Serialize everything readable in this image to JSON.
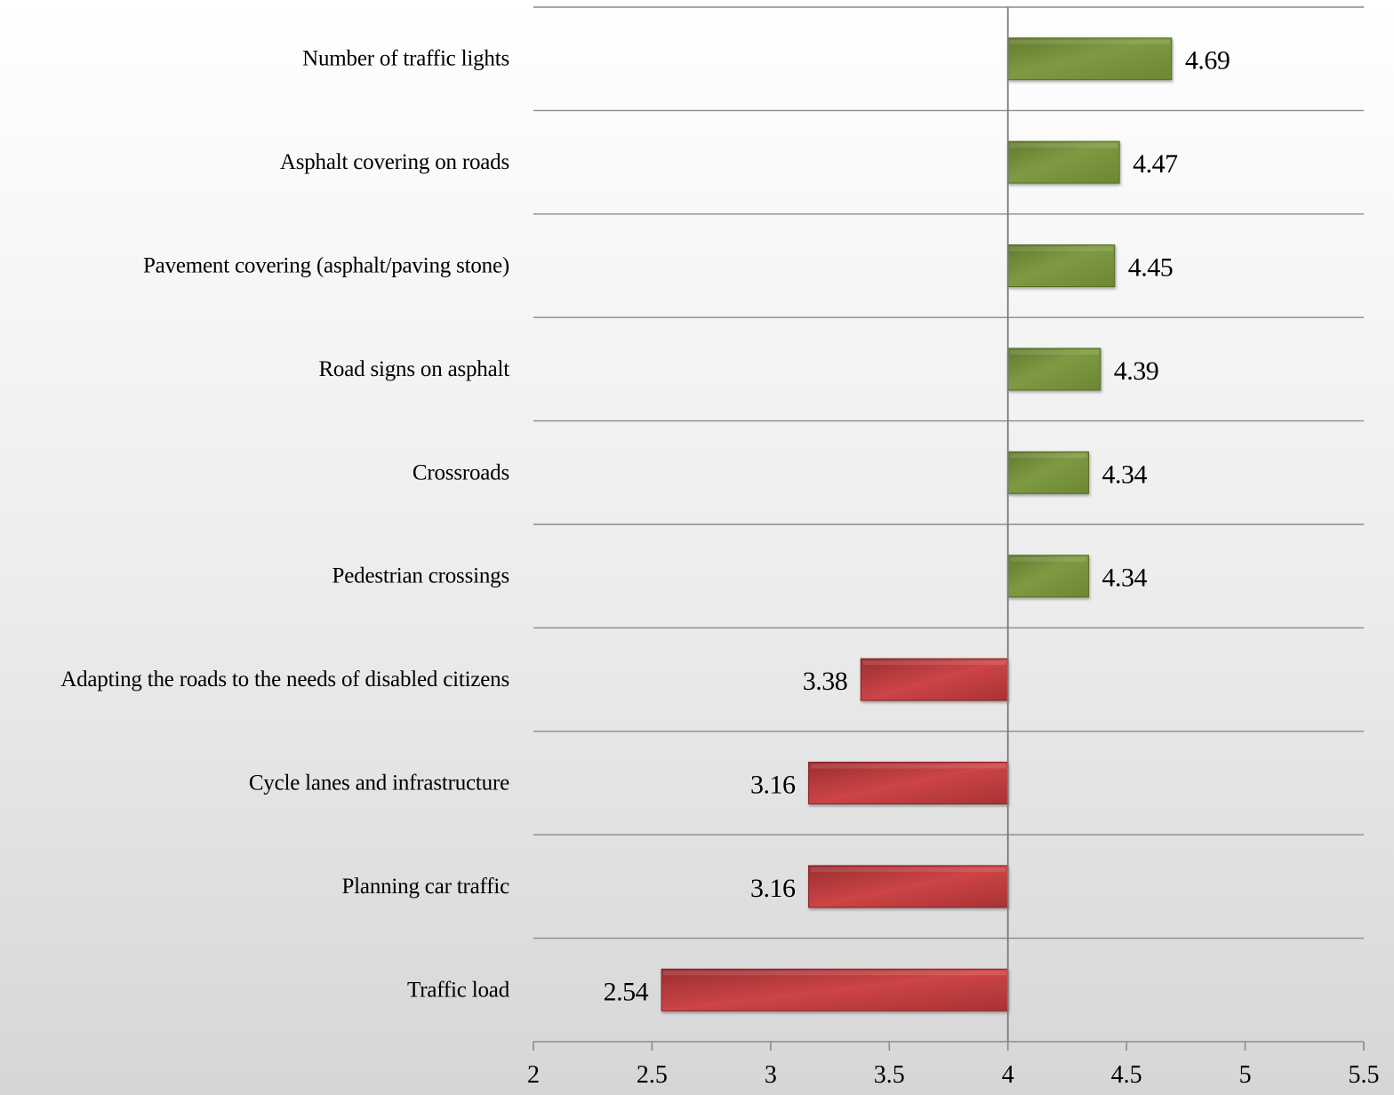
{
  "chart_data": {
    "type": "bar",
    "orientation": "horizontal",
    "title": "",
    "xlabel": "",
    "ylabel": "",
    "baseline": 4,
    "xlim": [
      2,
      5.5
    ],
    "ticks": [
      "2",
      "2.5",
      "3",
      "3.5",
      "4",
      "4.5",
      "5",
      "5.5"
    ],
    "tick_values": [
      2,
      2.5,
      3,
      3.5,
      4,
      4.5,
      5,
      5.5
    ],
    "grid": "horizontal separators between categories",
    "legend": "none",
    "colors": {
      "above": "#77933c",
      "below": "#c0393b"
    },
    "categories": [
      "Number of traffic lights",
      "Asphalt covering on roads",
      "Pavement covering (asphalt/paving stone)",
      "Road signs on asphalt",
      "Crossroads",
      "Pedestrian crossings",
      "Adapting the roads to the needs of disabled citizens",
      "Cycle lanes and infrastructure",
      "Planning car traffic",
      "Traffic load"
    ],
    "values": [
      4.69,
      4.47,
      4.45,
      4.39,
      4.34,
      4.34,
      3.38,
      3.16,
      3.16,
      2.54
    ],
    "value_labels": [
      "4.69",
      "4.47",
      "4.45",
      "4.39",
      "4.34",
      "4.34",
      "3.38",
      "3.16",
      "3.16",
      "2.54"
    ]
  }
}
